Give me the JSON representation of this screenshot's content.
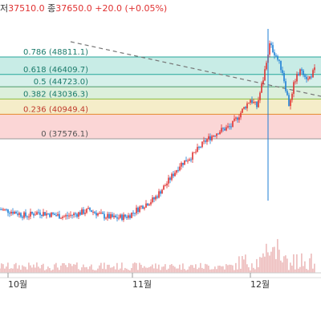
{
  "header": {
    "low_label": "저",
    "low_value": "37510.0",
    "close_label": "종",
    "close_value": "37650.0",
    "change": "+20.0 (+0.05%)"
  },
  "colors": {
    "up": "#e03131",
    "down": "#1c7ed6",
    "volume": "#e6a3a3",
    "trendline": "#777777",
    "fib_line": "#d9a84a"
  },
  "chart_data": {
    "type": "candlestick",
    "xlabels": [
      "10월",
      "11월",
      "12월"
    ],
    "fibonacci": {
      "levels": [
        {
          "ratio": "0.786",
          "value": 48811.1,
          "label": "0.786 (48811.1)",
          "line_color": "#26a69a",
          "fill": "#c8ece6"
        },
        {
          "ratio": "0.618",
          "value": 46409.7,
          "label": "0.618 (46409.7)",
          "line_color": "#26a69a",
          "fill": "#d6f0ea"
        },
        {
          "ratio": "0.5",
          "value": 44723.0,
          "label": "0.5 (44723.0)",
          "line_color": "#4c9a6a",
          "fill": "#dcefdc"
        },
        {
          "ratio": "0.382",
          "value": 43036.3,
          "label": "0.382 (43036.3)",
          "line_color": "#8bbd3e",
          "fill": "#f5edc9"
        },
        {
          "ratio": "0.236",
          "value": 40949.4,
          "label": "0.236 (40949.4)",
          "line_color": "#e68a2e",
          "fill": "#fbd6d6"
        },
        {
          "ratio": "0",
          "value": 37576.1,
          "label": "0 (37576.1)",
          "line_color": "#999999",
          "fill": ""
        }
      ]
    },
    "price_path": [
      {
        "day": 0,
        "price": 27900
      },
      {
        "day": 4,
        "price": 27600
      },
      {
        "day": 8,
        "price": 27000
      },
      {
        "day": 12,
        "price": 27500
      },
      {
        "day": 16,
        "price": 27200
      },
      {
        "day": 20,
        "price": 26900
      },
      {
        "day": 24,
        "price": 27300
      },
      {
        "day": 28,
        "price": 27800
      },
      {
        "day": 32,
        "price": 27000
      },
      {
        "day": 36,
        "price": 26700
      },
      {
        "day": 40,
        "price": 27000
      },
      {
        "day": 44,
        "price": 28300
      },
      {
        "day": 48,
        "price": 29300
      },
      {
        "day": 52,
        "price": 31500
      },
      {
        "day": 56,
        "price": 34000
      },
      {
        "day": 60,
        "price": 35300
      },
      {
        "day": 64,
        "price": 37300
      },
      {
        "day": 68,
        "price": 38600
      },
      {
        "day": 72,
        "price": 39300
      },
      {
        "day": 76,
        "price": 41800
      },
      {
        "day": 78,
        "price": 43000
      },
      {
        "day": 80,
        "price": 42000
      },
      {
        "day": 82,
        "price": 45800
      },
      {
        "day": 84,
        "price": 50500
      },
      {
        "day": 86,
        "price": 49000
      },
      {
        "day": 88,
        "price": 46800
      },
      {
        "day": 90,
        "price": 42300
      },
      {
        "day": 92,
        "price": 45800
      },
      {
        "day": 94,
        "price": 47100
      },
      {
        "day": 96,
        "price": 45700
      },
      {
        "day": 98,
        "price": 47000
      }
    ]
  }
}
